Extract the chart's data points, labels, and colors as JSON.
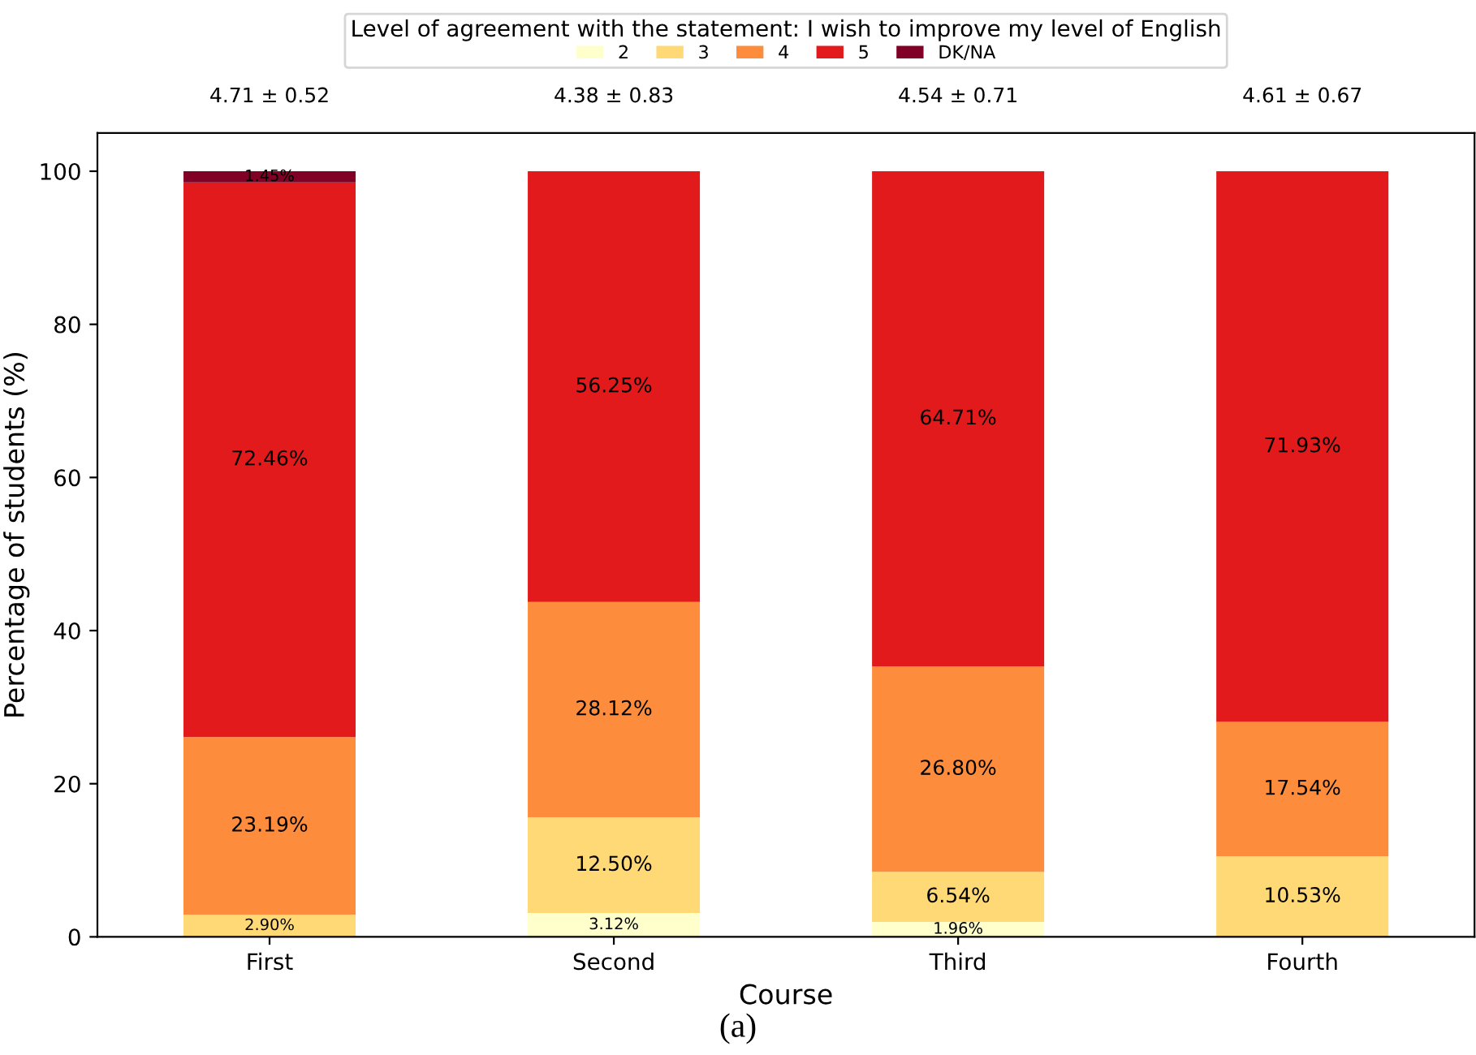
{
  "chart_data": {
    "type": "bar",
    "stacked": true,
    "xlabel": "Course",
    "ylabel": "Percentage of students (%)",
    "legend_title": "Level of agreement with the statement: I wish to improve my level of English",
    "legend": "top",
    "grid": false,
    "categories": [
      "First",
      "Second",
      "Third",
      "Fourth"
    ],
    "ylim": [
      0,
      105
    ],
    "yticks": [
      0,
      20,
      40,
      60,
      80,
      100
    ],
    "series": [
      {
        "name": "2",
        "color": "#ffffcc",
        "values": [
          0,
          3.12,
          1.96,
          0
        ],
        "value_labels": [
          null,
          "3.12%",
          "1.96%",
          null
        ]
      },
      {
        "name": "3",
        "color": "#fed976",
        "values": [
          2.9,
          12.5,
          6.54,
          10.53
        ],
        "value_labels": [
          "2.90%",
          "12.50%",
          "6.54%",
          "10.53%"
        ]
      },
      {
        "name": "4",
        "color": "#fd8d3c",
        "values": [
          23.19,
          28.12,
          26.8,
          17.54
        ],
        "value_labels": [
          "23.19%",
          "28.12%",
          "26.80%",
          "17.54%"
        ]
      },
      {
        "name": "5",
        "color": "#e31a1c",
        "values": [
          72.46,
          56.25,
          64.71,
          71.93
        ],
        "value_labels": [
          "72.46%",
          "56.25%",
          "64.71%",
          "71.93%"
        ]
      },
      {
        "name": "DK/NA",
        "color": "#800026",
        "values": [
          1.45,
          0,
          0,
          0
        ],
        "value_labels": [
          "1.45%",
          null,
          null,
          null
        ]
      }
    ],
    "annotations": [
      "4.71 ± 0.52",
      "4.38 ± 0.83",
      "4.54 ± 0.71",
      "4.61 ± 0.67",
      "(a)"
    ]
  }
}
